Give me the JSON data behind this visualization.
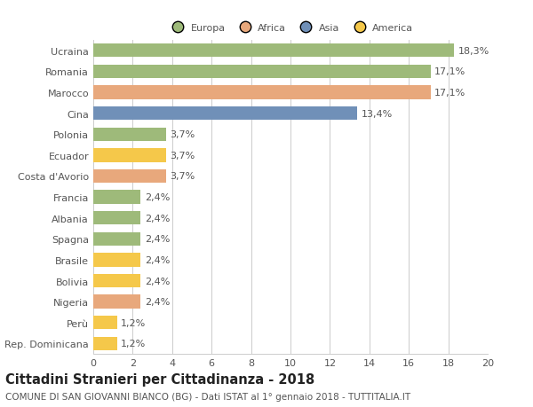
{
  "categories": [
    "Rep. Dominicana",
    "Perù",
    "Nigeria",
    "Bolivia",
    "Brasile",
    "Spagna",
    "Albania",
    "Francia",
    "Costa d'Avorio",
    "Ecuador",
    "Polonia",
    "Cina",
    "Marocco",
    "Romania",
    "Ucraina"
  ],
  "values": [
    1.2,
    1.2,
    2.4,
    2.4,
    2.4,
    2.4,
    2.4,
    2.4,
    3.7,
    3.7,
    3.7,
    13.4,
    17.1,
    17.1,
    18.3
  ],
  "colors": [
    "#f5c84a",
    "#f5c84a",
    "#e8a87c",
    "#f5c84a",
    "#f5c84a",
    "#9eba7a",
    "#9eba7a",
    "#9eba7a",
    "#e8a87c",
    "#f5c84a",
    "#9eba7a",
    "#7090b8",
    "#e8a87c",
    "#9eba7a",
    "#9eba7a"
  ],
  "legend_labels": [
    "Europa",
    "Africa",
    "Asia",
    "America"
  ],
  "legend_colors": [
    "#9eba7a",
    "#e8a87c",
    "#7090b8",
    "#f5c84a"
  ],
  "title": "Cittadini Stranieri per Cittadinanza - 2018",
  "subtitle": "COMUNE DI SAN GIOVANNI BIANCO (BG) - Dati ISTAT al 1° gennaio 2018 - TUTTITALIA.IT",
  "xlim": [
    0,
    20
  ],
  "xticks": [
    0,
    2,
    4,
    6,
    8,
    10,
    12,
    14,
    16,
    18,
    20
  ],
  "bg_color": "#ffffff",
  "grid_color": "#cccccc",
  "bar_height": 0.65,
  "label_fontsize": 8,
  "tick_fontsize": 8,
  "ylabel_fontsize": 8,
  "title_fontsize": 10.5,
  "subtitle_fontsize": 7.5
}
